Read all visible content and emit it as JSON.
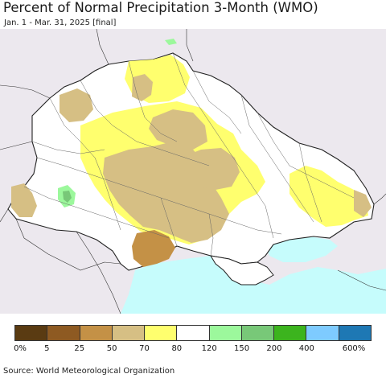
{
  "header": {
    "title": "Percent of Normal Precipitation 3-Month (WMO)",
    "subtitle": "Jan. 1 - Mar. 31, 2025 [final]"
  },
  "legend": {
    "classes": [
      {
        "color": "#5a3b12"
      },
      {
        "color": "#8e5a22"
      },
      {
        "color": "#c49146"
      },
      {
        "color": "#d6bf84"
      },
      {
        "color": "#ffff6e"
      },
      {
        "color": "#ffffff"
      },
      {
        "color": "#9cf89c"
      },
      {
        "color": "#78c878"
      },
      {
        "color": "#3cb41e"
      },
      {
        "color": "#7ecbff"
      },
      {
        "color": "#1e78b4"
      }
    ],
    "labels": [
      "0%",
      "5",
      "25",
      "50",
      "70",
      "80",
      "120",
      "150",
      "200",
      "400",
      "600%"
    ]
  },
  "colors": {
    "neighbors": "#ece8ee",
    "sea": "#c6fcfc",
    "border": "#222222"
  },
  "footer": {
    "source": "Source: World Meteorological Organization"
  }
}
